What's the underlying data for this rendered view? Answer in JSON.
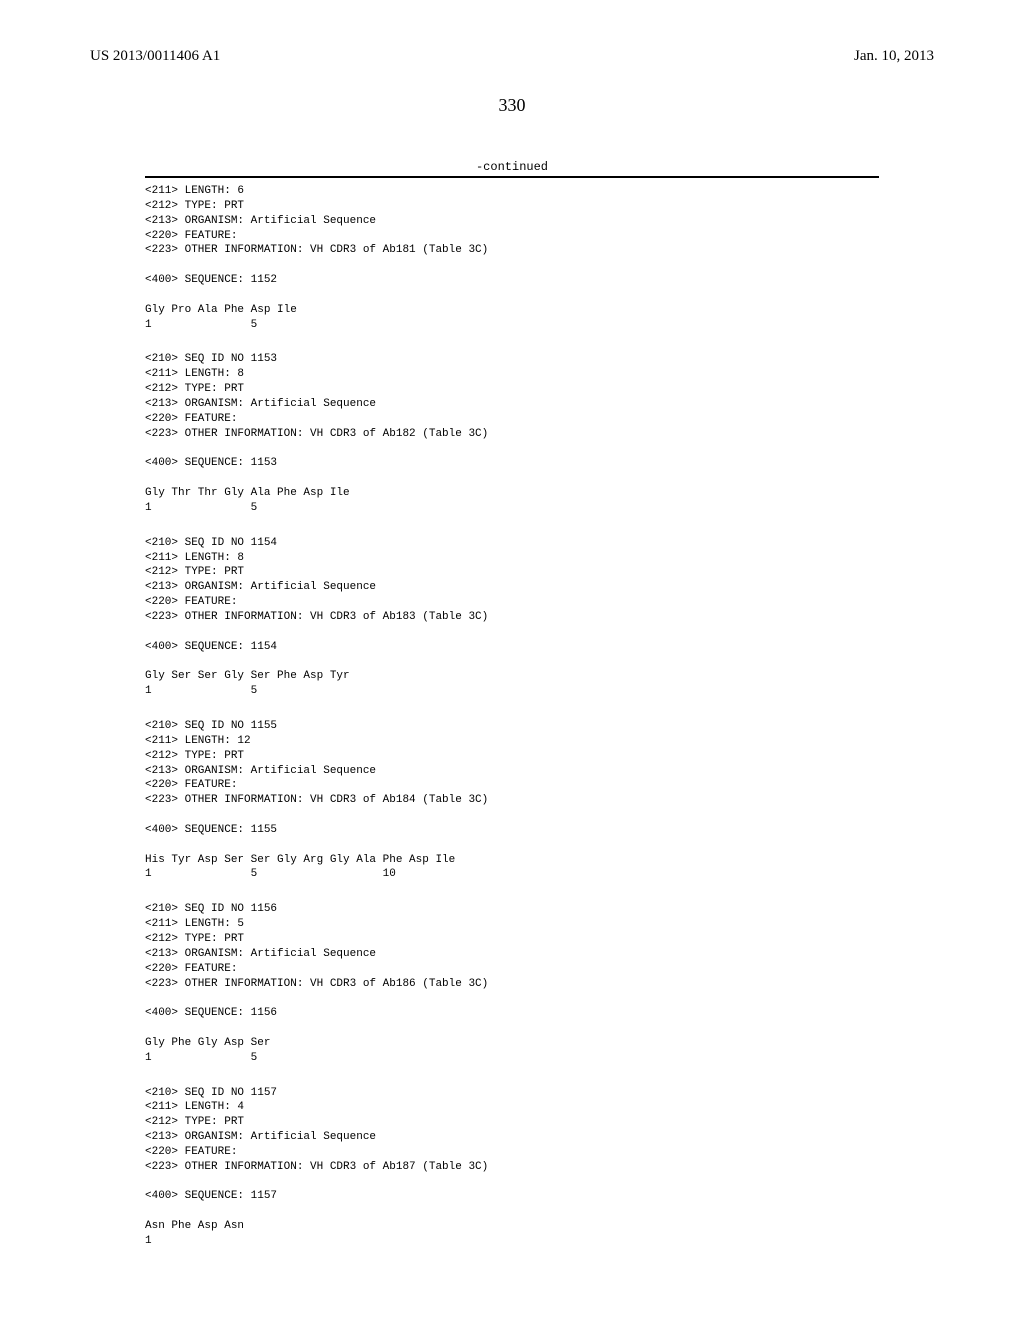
{
  "header": {
    "publication_number": "US 2013/0011406 A1",
    "publication_date": "Jan. 10, 2013"
  },
  "page_number": "330",
  "continued_label": "-continued",
  "entries": [
    {
      "meta": [
        "<211> LENGTH: 6",
        "<212> TYPE: PRT",
        "<213> ORGANISM: Artificial Sequence",
        "<220> FEATURE:",
        "<223> OTHER INFORMATION: VH CDR3 of Ab181 (Table 3C)"
      ],
      "seq_header": "<400> SEQUENCE: 1152",
      "seq_line": "Gly Pro Ala Phe Asp Ile",
      "num_line": "1               5"
    },
    {
      "meta": [
        "<210> SEQ ID NO 1153",
        "<211> LENGTH: 8",
        "<212> TYPE: PRT",
        "<213> ORGANISM: Artificial Sequence",
        "<220> FEATURE:",
        "<223> OTHER INFORMATION: VH CDR3 of Ab182 (Table 3C)"
      ],
      "seq_header": "<400> SEQUENCE: 1153",
      "seq_line": "Gly Thr Thr Gly Ala Phe Asp Ile",
      "num_line": "1               5"
    },
    {
      "meta": [
        "<210> SEQ ID NO 1154",
        "<211> LENGTH: 8",
        "<212> TYPE: PRT",
        "<213> ORGANISM: Artificial Sequence",
        "<220> FEATURE:",
        "<223> OTHER INFORMATION: VH CDR3 of Ab183 (Table 3C)"
      ],
      "seq_header": "<400> SEQUENCE: 1154",
      "seq_line": "Gly Ser Ser Gly Ser Phe Asp Tyr",
      "num_line": "1               5"
    },
    {
      "meta": [
        "<210> SEQ ID NO 1155",
        "<211> LENGTH: 12",
        "<212> TYPE: PRT",
        "<213> ORGANISM: Artificial Sequence",
        "<220> FEATURE:",
        "<223> OTHER INFORMATION: VH CDR3 of Ab184 (Table 3C)"
      ],
      "seq_header": "<400> SEQUENCE: 1155",
      "seq_line": "His Tyr Asp Ser Ser Gly Arg Gly Ala Phe Asp Ile",
      "num_line": "1               5                   10"
    },
    {
      "meta": [
        "<210> SEQ ID NO 1156",
        "<211> LENGTH: 5",
        "<212> TYPE: PRT",
        "<213> ORGANISM: Artificial Sequence",
        "<220> FEATURE:",
        "<223> OTHER INFORMATION: VH CDR3 of Ab186 (Table 3C)"
      ],
      "seq_header": "<400> SEQUENCE: 1156",
      "seq_line": "Gly Phe Gly Asp Ser",
      "num_line": "1               5"
    },
    {
      "meta": [
        "<210> SEQ ID NO 1157",
        "<211> LENGTH: 4",
        "<212> TYPE: PRT",
        "<213> ORGANISM: Artificial Sequence",
        "<220> FEATURE:",
        "<223> OTHER INFORMATION: VH CDR3 of Ab187 (Table 3C)"
      ],
      "seq_header": "<400> SEQUENCE: 1157",
      "seq_line": "Asn Phe Asp Asn",
      "num_line": "1"
    }
  ]
}
